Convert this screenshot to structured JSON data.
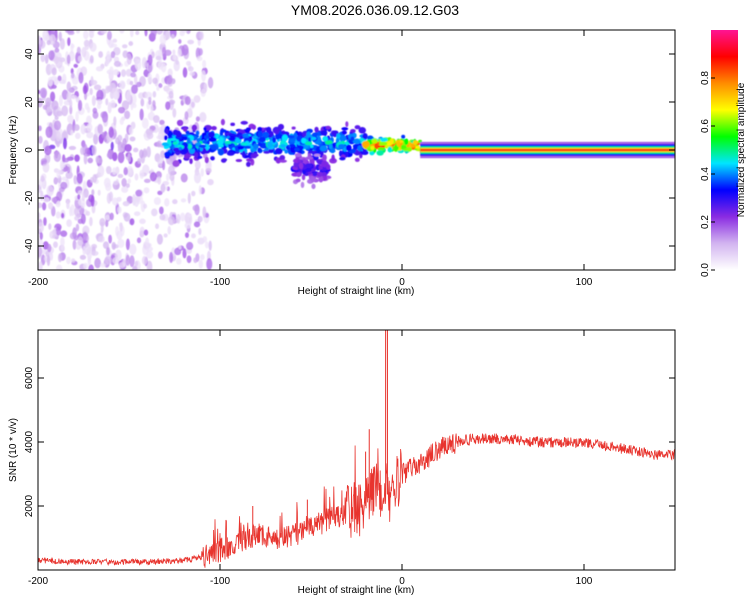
{
  "title": "YM08.2026.036.09.12.G03",
  "chart_data": [
    {
      "type": "heatmap",
      "xlabel": "Height of straight line (km)",
      "ylabel": "Frequency (Hz)",
      "xlim": [
        -200,
        150
      ],
      "ylim": [
        -50,
        50
      ],
      "xticks": [
        -200,
        -100,
        0,
        100
      ],
      "yticks": [
        -40,
        -20,
        0,
        20,
        40
      ],
      "colorbar": {
        "label": "Normalized spectral amplitude",
        "range": [
          0,
          1
        ],
        "ticks": [
          0.0,
          0.2,
          0.4,
          0.6,
          0.8
        ],
        "tick_labels": [
          "0.0",
          "0.2",
          "0.4",
          "0.6",
          "0.8"
        ],
        "colors": [
          "#ffffff",
          "#d2b4f0",
          "#8a2be2",
          "#0000ff",
          "#00e5ff",
          "#00ff00",
          "#ffff00",
          "#ff8c00",
          "#ff0000",
          "#ff1493"
        ]
      },
      "regions": [
        {
          "x_range": [
            -200,
            -105
          ],
          "f_range": [
            -50,
            50
          ],
          "amplitude": 0.1,
          "description": "scattered noise"
        },
        {
          "x_range": [
            -130,
            -20
          ],
          "center_freq": 3,
          "spread_hz": 10,
          "amplitude": 0.45
        },
        {
          "x_range": [
            -60,
            -40
          ],
          "center_freq": -8,
          "spread_hz": 8,
          "amplitude": 0.3
        },
        {
          "x_range": [
            -20,
            10
          ],
          "center_freq": 2,
          "spread_hz": 4,
          "amplitude": 0.8
        },
        {
          "x_range": [
            10,
            150
          ],
          "center_freq": 0,
          "spread_hz": 3,
          "amplitude": 0.9
        }
      ]
    },
    {
      "type": "line",
      "xlabel": "Height of straight line (km)",
      "ylabel": "SNR (10 * v/v)",
      "xlim": [
        -200,
        150
      ],
      "ylim": [
        0,
        7500
      ],
      "xticks": [
        -200,
        -100,
        0,
        100
      ],
      "yticks": [
        2000,
        4000,
        6000
      ],
      "color": "#e8342e",
      "series": [
        {
          "name": "SNR",
          "x": [
            -200,
            -180,
            -160,
            -140,
            -120,
            -110,
            -100,
            -90,
            -80,
            -70,
            -60,
            -50,
            -40,
            -30,
            -20,
            -15,
            -10,
            -5,
            0,
            10,
            20,
            30,
            40,
            50,
            60,
            70,
            80,
            90,
            100,
            110,
            120,
            130,
            140,
            150
          ],
          "y": [
            300,
            250,
            250,
            250,
            300,
            400,
            600,
            900,
            1100,
            1000,
            1100,
            1300,
            1600,
            1800,
            2000,
            2600,
            2400,
            2300,
            3000,
            3300,
            3800,
            4000,
            4100,
            4100,
            4100,
            4000,
            4000,
            4000,
            3950,
            3900,
            3800,
            3700,
            3600,
            3600
          ]
        },
        {
          "name": "spikes",
          "x": [
            -82,
            -52,
            -20,
            -18,
            -9,
            -8
          ],
          "y": [
            2000,
            2200,
            3700,
            4400,
            7700,
            7500
          ]
        }
      ]
    }
  ]
}
